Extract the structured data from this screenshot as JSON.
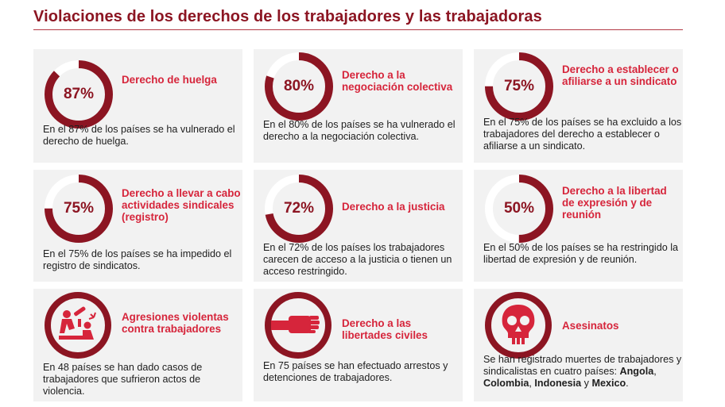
{
  "title": "Violaciones de los derechos de los trabajadores y las trabajadoras",
  "accent_color": "#d6253b",
  "dark_color": "#8c1522",
  "cards": [
    {
      "percent_value": 87,
      "percent_label": "87%",
      "heading": "Derecho de huelga",
      "description": "En el 87% de los países se ha vulnerado el derecho de huelga."
    },
    {
      "percent_value": 80,
      "percent_label": "80%",
      "heading": "Derecho a la negociación colectiva",
      "description": "En el 80% de los países se ha vulnerado el derecho a la negociación colectiva."
    },
    {
      "percent_value": 75,
      "percent_label": "75%",
      "heading": "Derecho a establecer o afiliarse a un sindicato",
      "description": "En el 75% de los países se ha excluido a los trabajadores del derecho a establecer o afiliarse a un sindicato."
    },
    {
      "percent_value": 75,
      "percent_label": "75%",
      "heading": "Derecho a llevar a cabo actividades sindicales (registro)",
      "description": "En el 75% de los países se ha impedido el registro de sindicatos."
    },
    {
      "percent_value": 72,
      "percent_label": "72%",
      "heading": "Derecho a la justicia",
      "description": "En el 72% de los países los trabajadores carecen de acceso a la justicia o tienen un acceso restringido."
    },
    {
      "percent_value": 50,
      "percent_label": "50%",
      "heading": "Derecho a la libertad de expresión y de reunión",
      "description": "En el 50% de los países se ha restringido la libertad de expresión y de reunión."
    },
    {
      "icon": "violent-assault-icon",
      "heading": "Agresiones violentas contra trabajadores",
      "description": "En 48 países se han dado casos de trabajadores que sufrieron actos de violencia."
    },
    {
      "icon": "raised-fist-icon",
      "heading": "Derecho a las libertades civiles",
      "description": "En 75 países se han efectuado arrestos y detenciones de trabajadores."
    },
    {
      "icon": "skull-icon",
      "heading": "Asesinatos",
      "description_prefix": "Se han registrado muertes de trabajadores y sindicalistas en cuatro países: ",
      "countries": [
        "Angola",
        "Colombia",
        "Indonesia",
        "Mexico"
      ],
      "sep_comma": ", ",
      "sep_and": " y ",
      "end": "."
    }
  ]
}
